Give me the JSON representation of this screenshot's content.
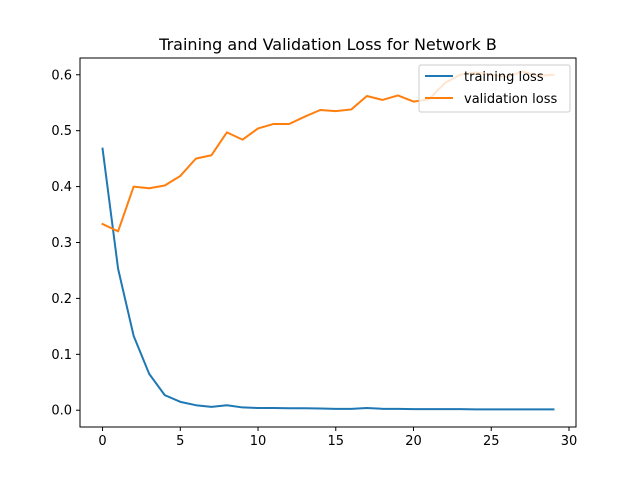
{
  "chart_data": {
    "type": "line",
    "title": "Training and Validation Loss for Network B",
    "xlabel": "",
    "ylabel": "",
    "xlim": [
      -1.45,
      30.45
    ],
    "ylim": [
      -0.03,
      0.63
    ],
    "xticks": [
      0,
      5,
      10,
      15,
      20,
      25,
      30
    ],
    "yticks": [
      0.0,
      0.1,
      0.2,
      0.3,
      0.4,
      0.5,
      0.6
    ],
    "ytick_labels": [
      "0.0",
      "0.1",
      "0.2",
      "0.3",
      "0.4",
      "0.5",
      "0.6"
    ],
    "grid": false,
    "legend_position": "top-right",
    "x": [
      0,
      1,
      2,
      3,
      4,
      5,
      6,
      7,
      8,
      9,
      10,
      11,
      12,
      13,
      14,
      15,
      16,
      17,
      18,
      19,
      20,
      21,
      22,
      23,
      24,
      25,
      26,
      27,
      28,
      29
    ],
    "series": [
      {
        "name": "training loss",
        "color": "#1f77b4",
        "values": [
          0.468,
          0.253,
          0.133,
          0.065,
          0.027,
          0.015,
          0.009,
          0.006,
          0.009,
          0.005,
          0.004,
          0.004,
          0.0035,
          0.0035,
          0.003,
          0.0025,
          0.0025,
          0.004,
          0.0025,
          0.0025,
          0.002,
          0.002,
          0.002,
          0.002,
          0.0015,
          0.0015,
          0.0015,
          0.0015,
          0.0015,
          0.0015
        ]
      },
      {
        "name": "validation loss",
        "color": "#ff7f0e",
        "values": [
          0.333,
          0.32,
          0.4,
          0.397,
          0.402,
          0.419,
          0.45,
          0.456,
          0.497,
          0.484,
          0.504,
          0.512,
          0.512,
          0.525,
          0.537,
          0.535,
          0.538,
          0.562,
          0.555,
          0.563,
          0.552,
          0.556,
          0.585,
          0.6,
          0.604,
          0.6,
          0.596,
          0.606,
          0.598,
          0.6
        ]
      }
    ]
  }
}
